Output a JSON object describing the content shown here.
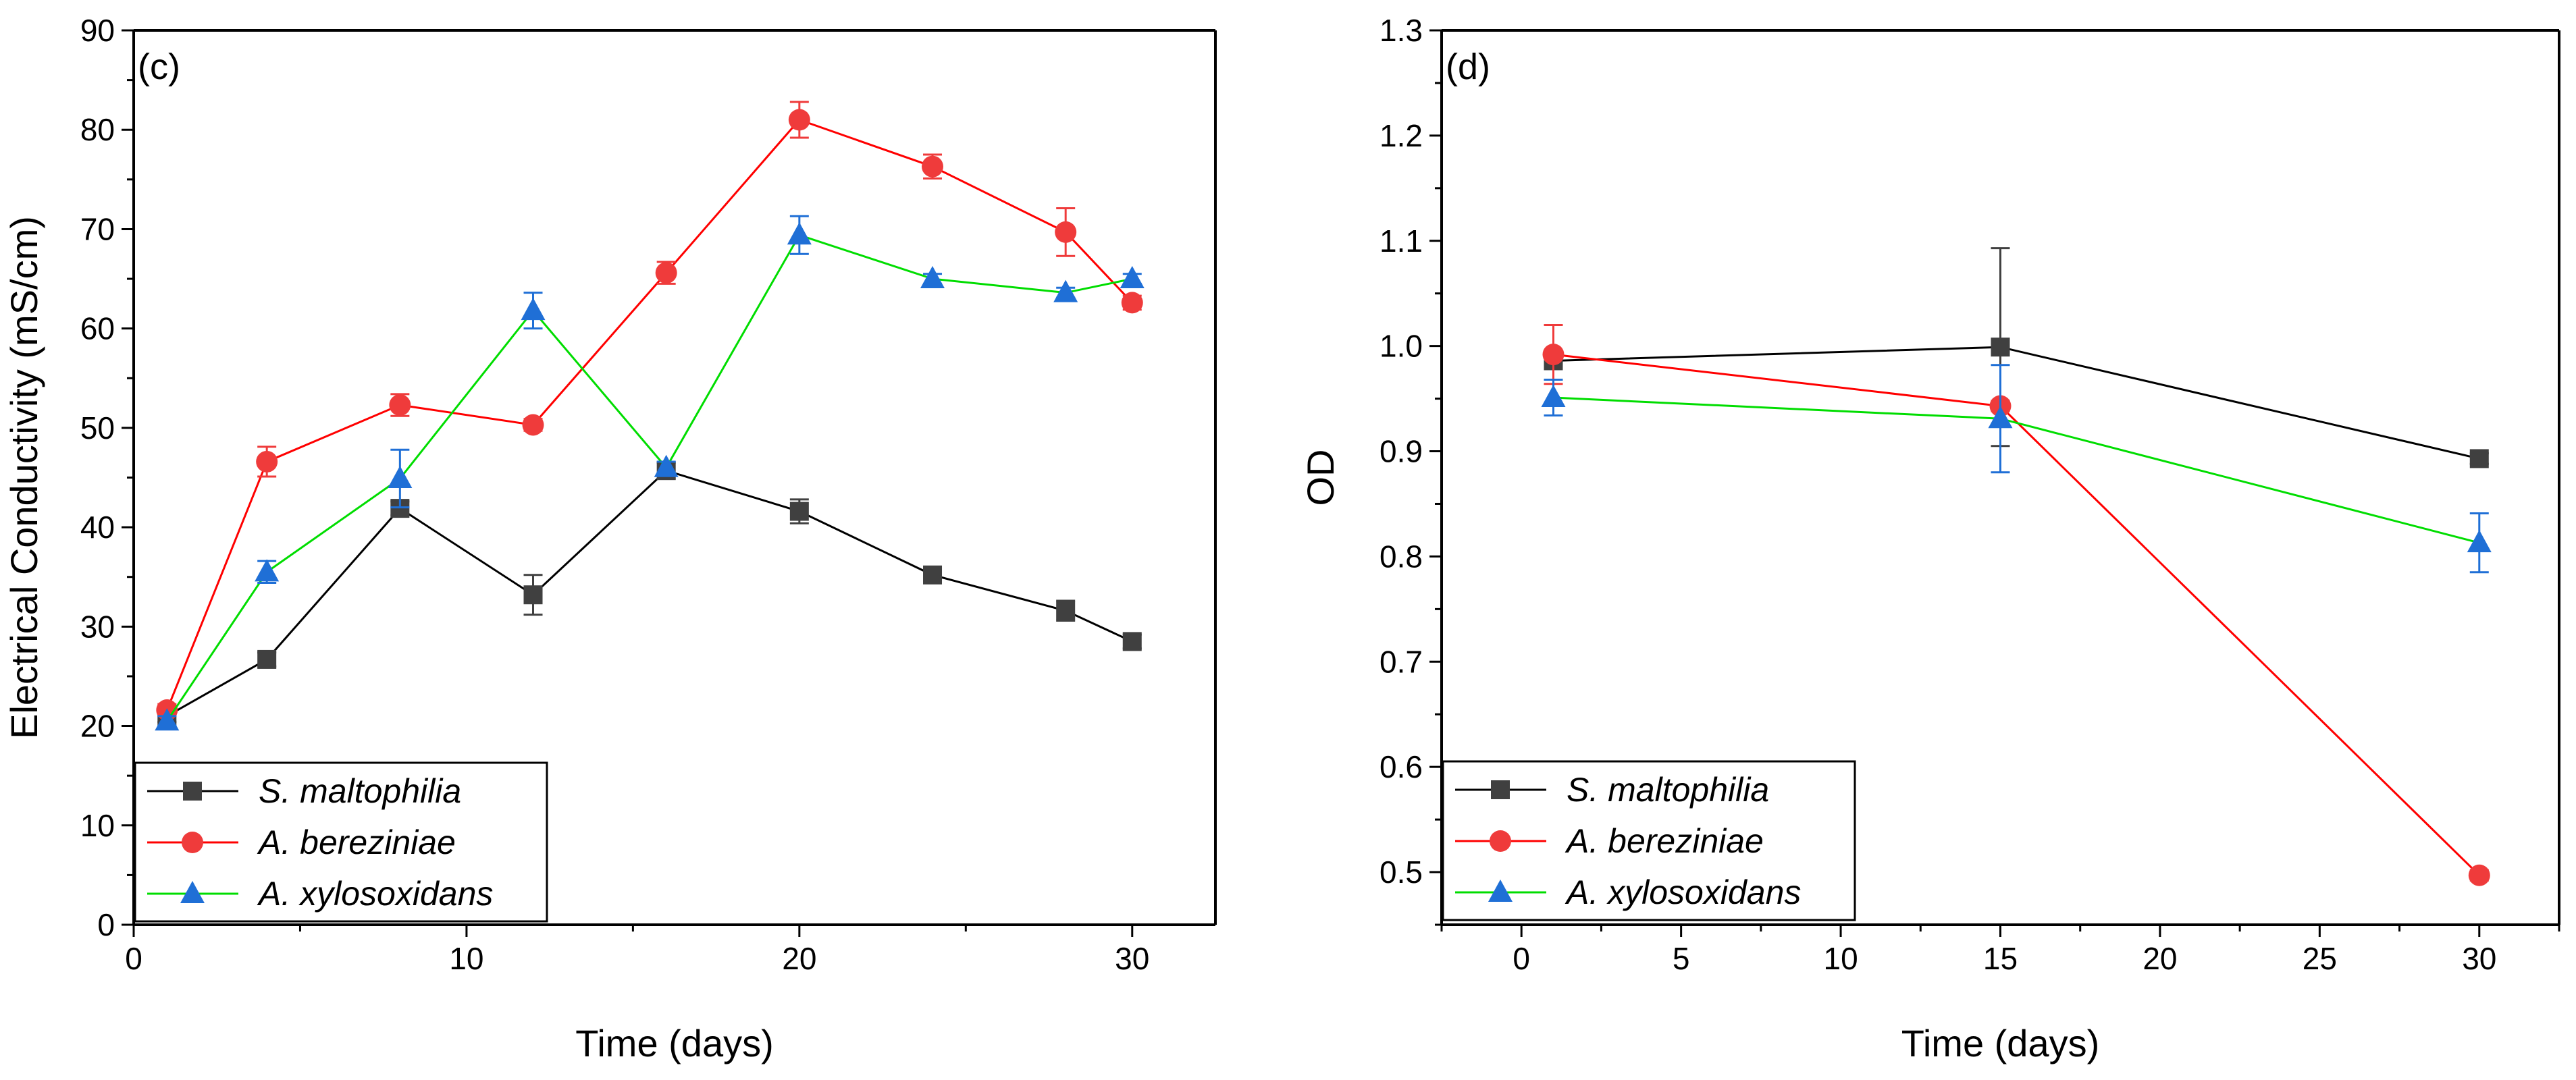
{
  "chart_data": [
    {
      "type": "line",
      "panel_label": "(c)",
      "xlabel": "Time (days)",
      "ylabel": "Electrical Conductivity (mS/cm)",
      "xlim": [
        0,
        32.5
      ],
      "ylim": [
        0,
        90
      ],
      "xticks": [
        0,
        10,
        20,
        30
      ],
      "yticks": [
        0,
        10,
        20,
        30,
        40,
        50,
        60,
        70,
        80,
        90
      ],
      "legend_position": "bottom-left",
      "grid": false,
      "series": [
        {
          "name": "S. maltophilia",
          "color": "#404040",
          "line_color": "#000000",
          "marker": "square",
          "x": [
            1,
            4,
            8,
            12,
            16,
            20,
            24,
            28,
            30
          ],
          "y": [
            21.0,
            26.7,
            41.9,
            33.2,
            45.7,
            41.6,
            35.2,
            31.6,
            28.5
          ],
          "err": [
            0.6,
            0.7,
            0.7,
            2.0,
            0.8,
            1.2,
            0.6,
            1.0,
            0.7
          ]
        },
        {
          "name": "A. bereziniae",
          "color": "#ef3b3b",
          "line_color": "#ff0000",
          "marker": "circle",
          "x": [
            1,
            4,
            8,
            12,
            16,
            20,
            24,
            28,
            30
          ],
          "y": [
            21.6,
            46.6,
            52.3,
            50.3,
            65.6,
            81.0,
            76.3,
            69.7,
            62.6
          ],
          "err": [
            0.6,
            1.5,
            1.1,
            0.6,
            1.1,
            1.8,
            1.2,
            2.4,
            0.7
          ]
        },
        {
          "name": "A. xylosoxidans",
          "color": "#1f6fd6",
          "line_color": "#00dd00",
          "marker": "triangle",
          "x": [
            1,
            4,
            8,
            12,
            16,
            20,
            24,
            28,
            30
          ],
          "y": [
            20.5,
            35.5,
            44.9,
            61.8,
            46.0,
            69.4,
            65.0,
            63.6,
            65.0
          ],
          "err": [
            0.5,
            1.1,
            2.9,
            1.8,
            0.6,
            1.9,
            0.5,
            0.5,
            0.5
          ]
        }
      ]
    },
    {
      "type": "line",
      "panel_label": "(d)",
      "xlabel": "Time (days)",
      "ylabel": "OD",
      "xlim": [
        -2.5,
        32.5
      ],
      "ylim": [
        0.45,
        1.3
      ],
      "xticks": [
        0,
        5,
        10,
        15,
        20,
        25,
        30
      ],
      "yticks": [
        0.5,
        0.6,
        0.7,
        0.8,
        0.9,
        1.0,
        1.1,
        1.2,
        1.3
      ],
      "legend_position": "bottom-left",
      "grid": false,
      "series": [
        {
          "name": "S. maltophilia",
          "color": "#404040",
          "line_color": "#000000",
          "marker": "square",
          "x": [
            1,
            15,
            30
          ],
          "y": [
            0.986,
            0.999,
            0.893
          ],
          "err": [
            0.005,
            0.094,
            0.005
          ]
        },
        {
          "name": "A. bereziniae",
          "color": "#ef3b3b",
          "line_color": "#ff0000",
          "marker": "circle",
          "x": [
            1,
            15,
            30
          ],
          "y": [
            0.992,
            0.943,
            0.497
          ],
          "err": [
            0.028,
            0.005,
            0.005
          ]
        },
        {
          "name": "A. xylosoxidans",
          "color": "#1f6fd6",
          "line_color": "#00dd00",
          "marker": "triangle",
          "x": [
            1,
            15,
            30
          ],
          "y": [
            0.951,
            0.931,
            0.813
          ],
          "err": [
            0.017,
            0.051,
            0.028
          ]
        }
      ]
    }
  ]
}
